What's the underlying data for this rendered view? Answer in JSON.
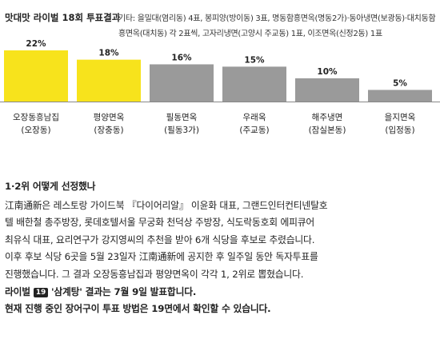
{
  "header": {
    "title": "맛대맛 라이벌 18회 투표결과",
    "note": "기타: 을밀대(염리동) 4표, 봉피양(방이동) 3표, 명동함흥면옥(명동2가)·동아냉면(보광동)·대치동함흥면옥(대치동) 각 2표씩, 고자리냉면(고양시 주교동) 1표, 이조면옥(신정2동) 1표"
  },
  "chart_data": {
    "type": "bar",
    "categories": [
      {
        "name": "오장동흥남집",
        "area": "(오장동)"
      },
      {
        "name": "평양면옥",
        "area": "(장충동)"
      },
      {
        "name": "필동면옥",
        "area": "(필동3가)"
      },
      {
        "name": "우래옥",
        "area": "(주교동)"
      },
      {
        "name": "해주냉면",
        "area": "(잠실본동)"
      },
      {
        "name": "을지면옥",
        "area": "(입정동)"
      }
    ],
    "values": [
      22,
      18,
      16,
      15,
      10,
      5
    ],
    "value_labels": [
      "22%",
      "18%",
      "16%",
      "15%",
      "10%",
      "5%"
    ],
    "ylim": [
      0,
      22
    ],
    "colors": {
      "highlight": "#f7e31c",
      "other": "#9a9a9a"
    },
    "highlight_count": 2
  },
  "article": {
    "subtitle": "1·2위 어떻게 선정했나",
    "lines": [
      "江南通新은 레스토랑 가이드북 『다이어리알』 이윤화 대표, 그랜드인터컨티넨탈호",
      "텔 배한철 총주방장, 롯데호텔서울 무궁화 천덕상 주방장, 식도락동호회 에피큐어",
      "최유식 대표, 요리연구가 강지영씨의 추천을 받아 6개 식당을 후보로 추렸습니다.",
      "이후 후보 식당 6곳을 5월 23일자 江南通新에 공지한 후 일주일 동안 독자투표를",
      "진행했습니다. 그 결과 오장동흥남집과 평양면옥이 각각 1, 2위로 뽑혔습니다."
    ],
    "rival_prefix": "라이벌",
    "rival_number": "19",
    "rival_suffix": "'삼계탕' 결과는 7월 9일 발표합니다.",
    "closing": "현재 진행 중인 장어구이 투표 방법은 19면에서 확인할 수 있습니다."
  }
}
